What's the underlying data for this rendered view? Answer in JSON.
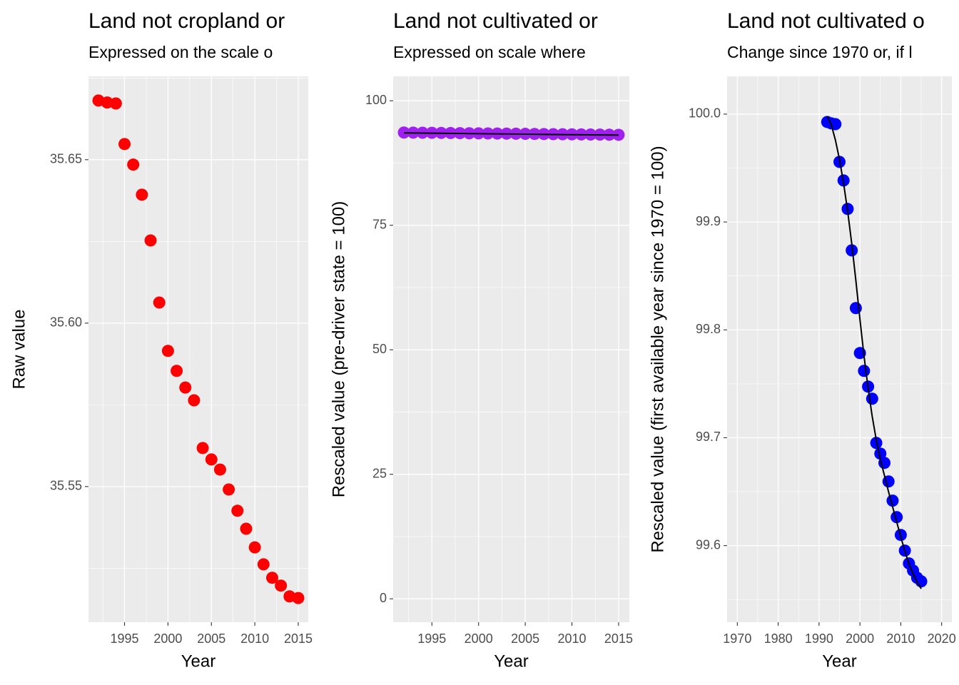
{
  "chart_data": [
    {
      "type": "scatter",
      "title": "Land not cropland or",
      "subtitle": "Expressed on the scale o",
      "x_label": "Year",
      "y_label": "Raw value",
      "x": [
        1992,
        1993,
        1994,
        1995,
        1996,
        1997,
        1998,
        1999,
        2000,
        2001,
        2002,
        2003,
        2004,
        2005,
        2006,
        2007,
        2008,
        2009,
        2010,
        2011,
        2012,
        2013,
        2014,
        2015
      ],
      "values": [
        35.6681,
        35.6675,
        35.6672,
        35.6548,
        35.6485,
        35.6393,
        35.6253,
        35.6063,
        35.5915,
        35.5854,
        35.5803,
        35.5764,
        35.5618,
        35.5583,
        35.5552,
        35.5491,
        35.5426,
        35.5371,
        35.5314,
        35.5262,
        35.5221,
        35.5197,
        35.5164,
        35.5159
      ],
      "color": "#ff0000",
      "xlim": [
        1990.85,
        2016.15
      ],
      "ylim": [
        35.5085,
        35.6755
      ],
      "xticks": [
        1995,
        2000,
        2005,
        2010,
        2015
      ],
      "yticks": [
        35.55,
        {
          "value": 35.6,
          "label": "35.60"
        },
        35.65
      ],
      "grid": true
    },
    {
      "type": "scatter",
      "title": "Land not cultivated or",
      "subtitle": "Expressed on scale where",
      "x_label": "Year",
      "y_label": "Rescaled value (pre-driver state = 100)",
      "x": [
        1992,
        1993,
        1994,
        1995,
        1996,
        1997,
        1998,
        1999,
        2000,
        2001,
        2002,
        2003,
        2004,
        2005,
        2006,
        2007,
        2008,
        2009,
        2010,
        2011,
        2012,
        2013,
        2014,
        2015
      ],
      "values": [
        93.62,
        93.6,
        93.58,
        93.56,
        93.54,
        93.52,
        93.5,
        93.48,
        93.46,
        93.44,
        93.42,
        93.4,
        93.38,
        93.36,
        93.34,
        93.32,
        93.3,
        93.28,
        93.26,
        93.24,
        93.22,
        93.2,
        93.18,
        93.16
      ],
      "color": "#a020f0",
      "line": {
        "color": "#000000",
        "values": [
          93.55,
          93.53,
          93.51,
          93.49,
          93.47,
          93.45,
          93.43,
          93.41,
          93.39,
          93.37,
          93.35,
          93.33,
          93.31,
          93.29,
          93.27,
          93.25,
          93.23,
          93.21,
          93.19,
          93.17,
          93.15,
          93.13,
          93.11,
          93.09
        ]
      },
      "xlim": [
        1990.85,
        2016.15
      ],
      "ylim": [
        -4.7,
        104.9
      ],
      "xticks": [
        1995,
        2000,
        2005,
        2010,
        2015
      ],
      "yticks": [
        0,
        25,
        50,
        75,
        100
      ],
      "grid": true
    },
    {
      "type": "scatter",
      "title": "Land not cultivated o",
      "subtitle": "Change since 1970 or, if l",
      "x_label": "Year",
      "y_label": "Rescaled value (first available year since 1970 = 100)",
      "x": [
        1992,
        1993,
        1994,
        1995,
        1996,
        1997,
        1998,
        1999,
        2000,
        2001,
        2002,
        2003,
        2004,
        2005,
        2006,
        2007,
        2008,
        2009,
        2010,
        2011,
        2012,
        2013,
        2014,
        2015
      ],
      "values": [
        99.9927,
        99.9914,
        99.9907,
        99.9557,
        99.9385,
        99.9121,
        99.8737,
        99.8202,
        99.7785,
        99.762,
        99.7474,
        99.7362,
        99.6952,
        99.6853,
        99.6767,
        99.6595,
        99.6417,
        99.6264,
        99.6099,
        99.5954,
        99.5835,
        99.5769,
        99.5702,
        99.5669
      ],
      "color": "#0000ff",
      "line": {
        "color": "#000000",
        "values": [
          99.998,
          99.99,
          99.976,
          99.958,
          99.936,
          99.91,
          99.88,
          99.846,
          99.81,
          99.776,
          99.746,
          99.72,
          99.698,
          99.68,
          99.665,
          99.65,
          99.636,
          99.622,
          99.608,
          99.595,
          99.583,
          99.574,
          99.566,
          99.56
        ]
      },
      "xlim": [
        1967.5,
        2022.5
      ],
      "ylim": [
        99.529,
        100.035
      ],
      "xticks": [
        1970,
        1980,
        1990,
        2000,
        2010,
        2020
      ],
      "yticks": [
        99.6,
        99.7,
        99.8,
        99.9,
        {
          "value": 100,
          "label": "100.0"
        }
      ],
      "grid": true
    }
  ]
}
